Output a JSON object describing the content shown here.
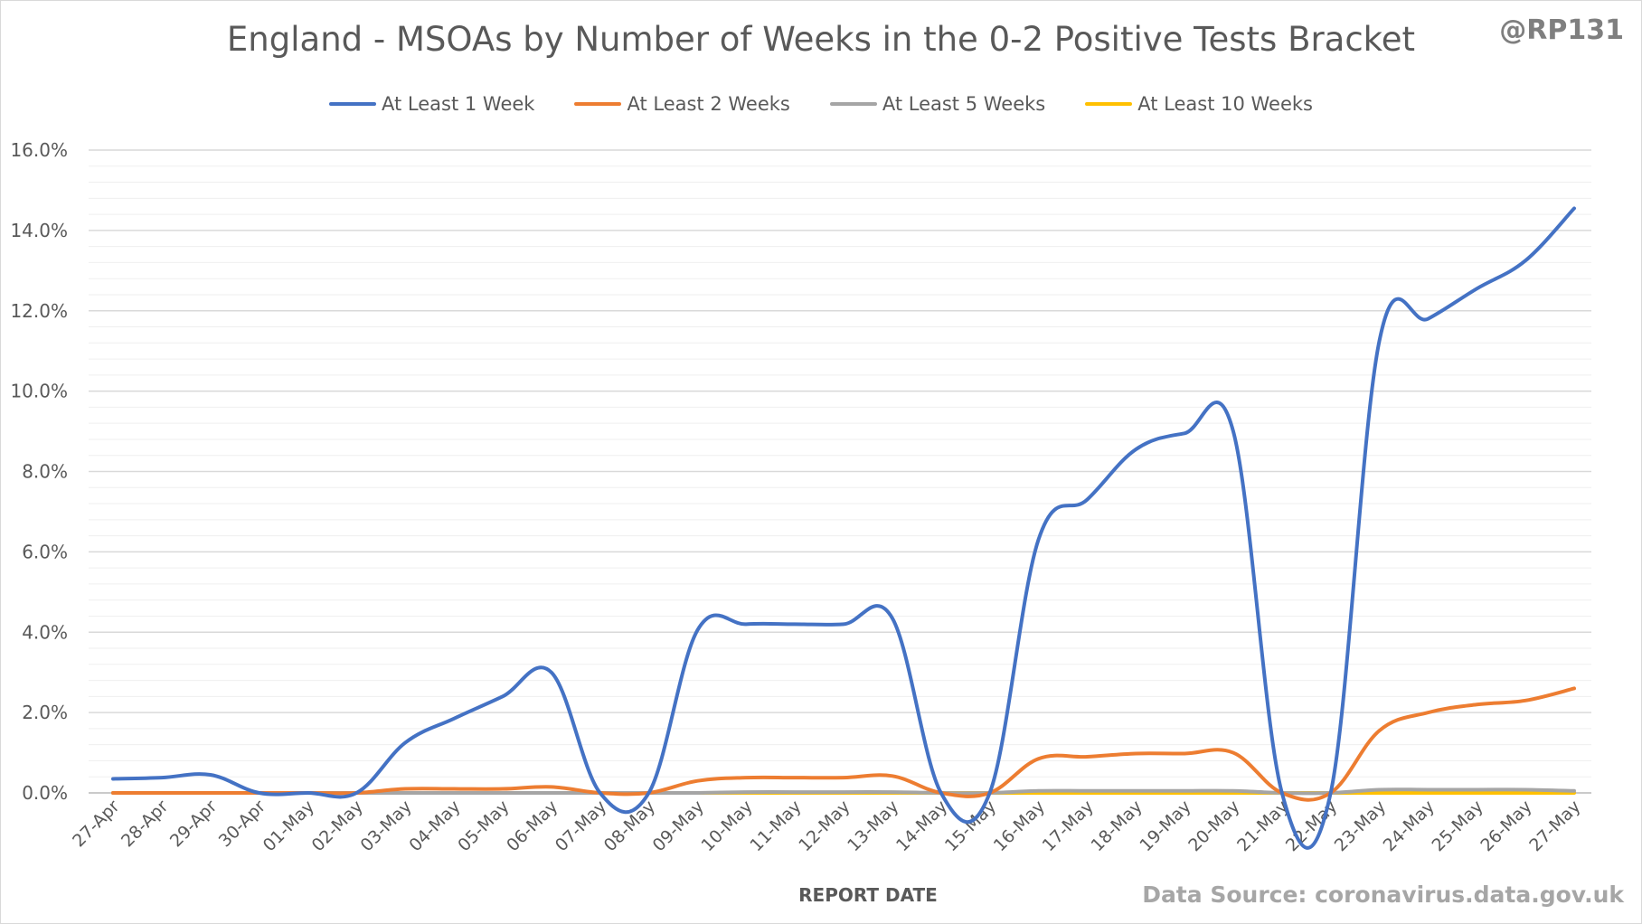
{
  "chart_data": {
    "type": "line",
    "title": "England - MSOAs by Number of Weeks in the 0-2 Positive Tests Bracket",
    "xlabel": "REPORT DATE",
    "ylabel": "",
    "handle": "@RP131",
    "source": "Data Source: coronavirus.data.gov.uk",
    "categories": [
      "27-Apr",
      "28-Apr",
      "29-Apr",
      "30-Apr",
      "01-May",
      "02-May",
      "03-May",
      "04-May",
      "05-May",
      "06-May",
      "07-May",
      "08-May",
      "09-May",
      "10-May",
      "11-May",
      "12-May",
      "13-May",
      "14-May",
      "15-May",
      "16-May",
      "17-May",
      "18-May",
      "19-May",
      "20-May",
      "21-May",
      "22-May",
      "23-May",
      "24-May",
      "25-May",
      "26-May",
      "27-May"
    ],
    "ylim": [
      0,
      16
    ],
    "yticks": [
      0,
      2,
      4,
      6,
      8,
      10,
      12,
      14,
      16
    ],
    "ytick_labels": [
      "0.0%",
      "2.0%",
      "4.0%",
      "6.0%",
      "8.0%",
      "10.0%",
      "12.0%",
      "14.0%",
      "16.0%"
    ],
    "minor_grid_step": 0.4,
    "grid": true,
    "legend_position": "top",
    "series": [
      {
        "name": "At Least 1 Week",
        "color": "#4472c4",
        "values": [
          0.35,
          0.38,
          0.45,
          0.0,
          0.0,
          0.0,
          1.25,
          1.85,
          2.4,
          3.0,
          0.0,
          0.0,
          4.05,
          4.2,
          4.2,
          4.2,
          4.35,
          0.0,
          0.0,
          6.3,
          7.3,
          8.55,
          8.95,
          9.0,
          0.0,
          0.0,
          11.25,
          11.8,
          12.55,
          13.25,
          14.55
        ]
      },
      {
        "name": "At Least 2 Weeks",
        "color": "#ed7d31",
        "values": [
          0.0,
          0.0,
          0.0,
          0.0,
          0.0,
          0.0,
          0.1,
          0.1,
          0.1,
          0.15,
          0.0,
          0.0,
          0.3,
          0.38,
          0.38,
          0.38,
          0.42,
          0.0,
          0.0,
          0.85,
          0.9,
          0.98,
          0.98,
          1.0,
          0.0,
          0.0,
          1.55,
          2.0,
          2.2,
          2.3,
          2.6
        ]
      },
      {
        "name": "At Least 5 Weeks",
        "color": "#a5a5a5",
        "values": [
          0.0,
          0.0,
          0.0,
          0.0,
          0.0,
          0.0,
          0.0,
          0.0,
          0.0,
          0.0,
          0.0,
          0.0,
          0.0,
          0.02,
          0.02,
          0.02,
          0.02,
          0.0,
          0.0,
          0.05,
          0.05,
          0.05,
          0.05,
          0.05,
          0.0,
          0.0,
          0.08,
          0.08,
          0.08,
          0.08,
          0.05
        ]
      },
      {
        "name": "At Least 10 Weeks",
        "color": "#ffc000",
        "values": [
          0.0,
          0.0,
          0.0,
          0.0,
          0.0,
          0.0,
          0.0,
          0.0,
          0.0,
          0.0,
          0.0,
          0.0,
          0.0,
          0.0,
          0.0,
          0.0,
          0.0,
          0.0,
          0.0,
          0.0,
          0.0,
          0.0,
          0.0,
          0.0,
          0.0,
          0.0,
          0.0,
          0.0,
          0.0,
          0.0,
          0.0
        ]
      }
    ]
  }
}
